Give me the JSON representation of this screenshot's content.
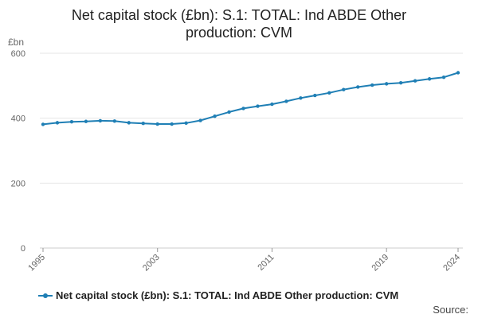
{
  "title_line1": "Net capital stock (£bn): S.1: TOTAL: Ind ABDE Other",
  "title_line2": "production: CVM",
  "source_label": "Source:",
  "colors": {
    "series": "#1f7fb5",
    "grid": "#e6e6e6",
    "axis_text": "#666666"
  },
  "chart_data": {
    "type": "line",
    "title": "Net capital stock (£bn): S.1: TOTAL: Ind ABDE Other production: CVM",
    "ylabel": "£bn",
    "xlabel": "",
    "ylim": [
      0,
      600
    ],
    "yticks": [
      0,
      200,
      400,
      600
    ],
    "xticks": [
      1995,
      2003,
      2011,
      2019,
      2024
    ],
    "grid": true,
    "legend": "bottom",
    "series": [
      {
        "name": "Net capital stock (£bn): S.1: TOTAL: Ind ABDE Other production: CVM",
        "x": [
          1995,
          1996,
          1997,
          1998,
          1999,
          2000,
          2001,
          2002,
          2003,
          2004,
          2005,
          2006,
          2007,
          2008,
          2009,
          2010,
          2011,
          2012,
          2013,
          2014,
          2015,
          2016,
          2017,
          2018,
          2019,
          2020,
          2021,
          2022,
          2023,
          2024
        ],
        "values": [
          381,
          386,
          389,
          390,
          392,
          391,
          386,
          384,
          382,
          382,
          385,
          393,
          406,
          419,
          430,
          437,
          443,
          452,
          462,
          470,
          478,
          488,
          496,
          502,
          506,
          509,
          515,
          521,
          526,
          540
        ]
      }
    ]
  }
}
